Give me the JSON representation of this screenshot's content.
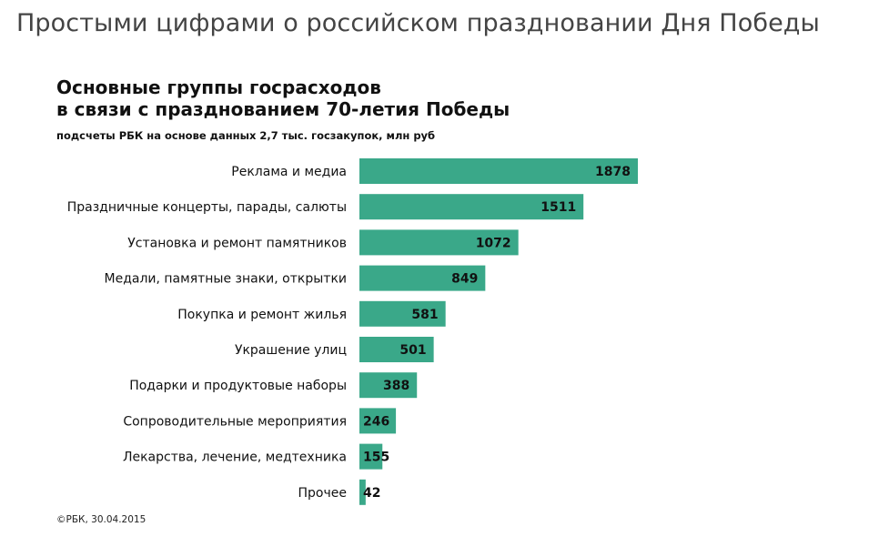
{
  "header": {
    "title": "Простыми цифрами о российском праздновании Дня Победы"
  },
  "chart_data": {
    "type": "bar",
    "orientation": "horizontal",
    "title_lines": [
      "Основные группы госрасходов",
      "в связи с празднованием 70-летия Победы"
    ],
    "subtitle": "подсчеты РБК на основе данных 2,7 тыс. госзакупок, млн руб",
    "categories": [
      "Реклама и медиа",
      "Праздничные концерты, парады, салюты",
      "Установка и ремонт памятников",
      "Медали, памятные знаки, открытки",
      "Покупка и ремонт жилья",
      "Украшение улиц",
      "Подарки и продуктовые наборы",
      "Сопроводительные мероприятия",
      "Лекарства, лечение, медтехника",
      "Прочее"
    ],
    "values": [
      1878,
      1511,
      1072,
      849,
      581,
      501,
      388,
      246,
      155,
      42
    ],
    "bar_color": "#3aa889",
    "grid": false,
    "legend": "none",
    "source": "©РБК, 30.04.2015"
  }
}
